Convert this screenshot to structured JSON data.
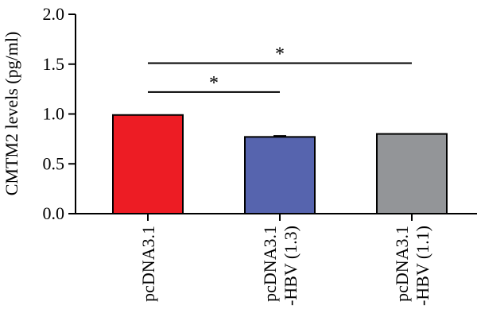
{
  "chart_data": {
    "type": "bar",
    "title": "",
    "xlabel": "",
    "ylabel": "CMTM2 levels (pg/ml)",
    "ylim": [
      0,
      2.0
    ],
    "yticks": [
      "0.0",
      "0.5",
      "1.0",
      "1.5",
      "2.0"
    ],
    "categories": [
      [
        "pcDNA3.1"
      ],
      [
        "pcDNA3.1",
        "-HBV (1.3)"
      ],
      [
        "pcDNA3.1",
        "-HBV (1.1)"
      ]
    ],
    "values": [
      0.99,
      0.77,
      0.8
    ],
    "errors": [
      0.0,
      0.01,
      0.0
    ],
    "colors": [
      "#ed1c24",
      "#5664ae",
      "#939598"
    ],
    "significance": [
      {
        "from": 0,
        "to": 1,
        "y": 1.22,
        "label": "*"
      },
      {
        "from": 0,
        "to": 2,
        "y": 1.51,
        "label": "*"
      }
    ],
    "grid": false,
    "legend": "none"
  }
}
